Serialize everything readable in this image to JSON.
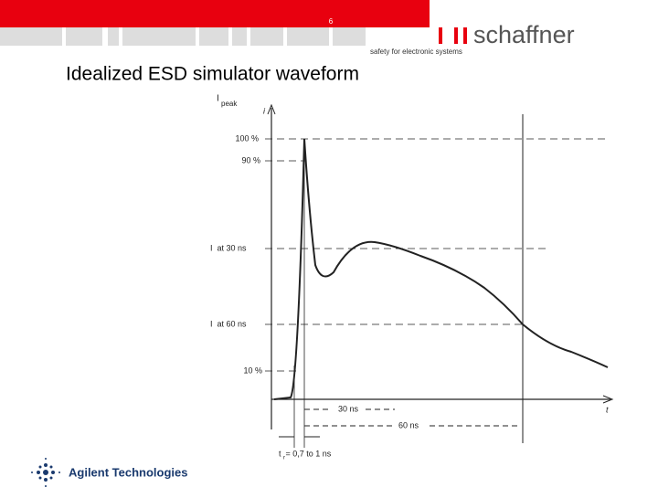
{
  "header": {
    "page_number": "6",
    "logo": "schaffner",
    "tagline": "safety for electronic systems"
  },
  "title": "Idealized ESD simulator waveform",
  "figure": {
    "i_peak": "I",
    "i_peak_sub": "peak",
    "i_axis": "i",
    "level_100": "100 %",
    "level_90": "90 %",
    "i_30ns": "I  at 30 ns",
    "i_60ns": "I  at 60 ns",
    "level_10": "10 %",
    "t_30ns": "30 ns",
    "t_60ns": "60 ns",
    "t_axis": "t",
    "rise_time": "t  = 0,7 to 1 ns",
    "rise_time_sub": "r"
  },
  "footer": {
    "company": "Agilent Technologies"
  }
}
